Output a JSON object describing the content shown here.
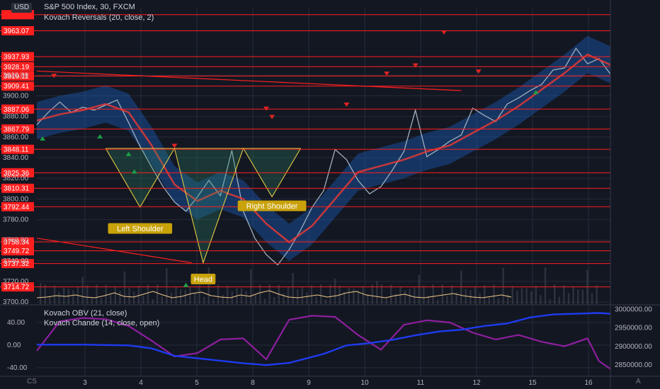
{
  "header": {
    "currency": "USD",
    "symbol_line": "S&P 500 Index, 30, FXCM",
    "indicator_line": "Kovach Reversals (20, close, 2)"
  },
  "lower_panel": {
    "line1": "Kovach OBV (21, close)",
    "line2": "Kovach Chande (14, close, open)"
  },
  "corner": {
    "left": "CS",
    "right": "A"
  },
  "colors": {
    "background": "#131722",
    "grid": "#262b3a",
    "level_line": "#ff1f1f",
    "level_badge": "#ff1f1f",
    "midline": "#e53935",
    "band_fill": "#1e6bd6",
    "price": "#9fb0bf",
    "pattern": "#f5d742",
    "obv": "#1f3bf0",
    "chande": "#8e1f9e",
    "volume_ma": "#f0c98a",
    "annotation_bg": "#c9a20a",
    "up_marker": "#1e9e47",
    "down_marker": "#e02424"
  },
  "chart_data": [
    {
      "type": "line",
      "title": "S&P 500 Index, 30, FXCM",
      "x_ticks": [
        "3",
        "4",
        "5",
        "8",
        "9",
        "10",
        "11",
        "12",
        "15",
        "16"
      ],
      "y_ticks": [
        "3920.00",
        "3900.00",
        "3880.00",
        "3860.00",
        "3840.00",
        "3820.00",
        "3800.00",
        "3780.00",
        "3760.00",
        "3740.00",
        "3720.00",
        "3700.00"
      ],
      "ylim": [
        3698,
        3986
      ],
      "xlim": [
        0,
        100
      ],
      "horizontal_levels": [
        "3963.07",
        "3937.93",
        "3928.19",
        "3919.11",
        "3909.41",
        "3887.06",
        "3867.79",
        "3848.11",
        "3825.36",
        "3810.31",
        "3792.44",
        "3758.34",
        "3749.72",
        "3737.32",
        "3714.72"
      ],
      "top_level_partial": "3978.6",
      "series": [
        {
          "key": "price",
          "x": [
            0,
            2,
            4,
            6,
            8,
            10,
            12,
            14,
            16,
            18,
            20,
            22,
            24,
            26,
            28,
            30,
            32,
            34,
            36,
            38,
            40,
            42,
            44,
            46,
            48,
            50,
            52,
            54,
            56,
            58,
            60,
            62,
            64,
            66,
            68,
            70,
            72,
            74,
            76,
            78,
            80,
            82,
            84,
            86,
            88,
            90,
            92,
            94,
            96,
            98,
            100
          ],
          "y": [
            3872,
            3884,
            3894,
            3884,
            3889,
            3886,
            3891,
            3896,
            3874,
            3851,
            3831,
            3812,
            3797,
            3788,
            3802,
            3818,
            3803,
            3847,
            3788,
            3762,
            3746,
            3736,
            3751,
            3770,
            3792,
            3808,
            3848,
            3838,
            3818,
            3805,
            3812,
            3828,
            3846,
            3886,
            3841,
            3848,
            3856,
            3862,
            3888,
            3881,
            3875,
            3892,
            3898,
            3905,
            3911,
            3925,
            3927,
            3946,
            3931,
            3936,
            3921
          ]
        },
        {
          "key": "midline",
          "x": [
            0,
            4,
            8,
            12,
            16,
            20,
            24,
            28,
            32,
            36,
            40,
            44,
            48,
            52,
            56,
            60,
            64,
            68,
            72,
            76,
            80,
            84,
            88,
            92,
            96,
            100
          ],
          "y": [
            3876,
            3882,
            3886,
            3892,
            3884,
            3852,
            3814,
            3798,
            3808,
            3800,
            3776,
            3758,
            3774,
            3800,
            3826,
            3832,
            3838,
            3846,
            3852,
            3864,
            3876,
            3890,
            3906,
            3922,
            3940,
            3930
          ]
        }
      ],
      "pattern": {
        "points": [
          [
            12,
            3849
          ],
          [
            18,
            3792
          ],
          [
            24,
            3849
          ],
          [
            29,
            3738
          ],
          [
            36,
            3849
          ],
          [
            41,
            3802
          ],
          [
            46,
            3849
          ]
        ],
        "neckline": 3849
      },
      "annotations": [
        "Left Shoulder",
        "Head",
        "Right Shoulder"
      ],
      "trendlines": [
        {
          "x": [
            0,
            74
          ],
          "y": [
            3924,
            3905
          ]
        },
        {
          "x": [
            0,
            27
          ],
          "y": [
            3762,
            3738
          ]
        }
      ],
      "markers_down": [
        [
          3,
          3918
        ],
        [
          24,
          3850
        ],
        [
          40,
          3886
        ],
        [
          41,
          3878
        ],
        [
          54,
          3890
        ],
        [
          61,
          3920
        ],
        [
          66,
          3928
        ],
        [
          71,
          3960
        ],
        [
          77,
          3922
        ]
      ],
      "markers_up": [
        [
          1,
          3860
        ],
        [
          11,
          3862
        ],
        [
          16,
          3845
        ],
        [
          17,
          3828
        ],
        [
          26,
          3718
        ],
        [
          87,
          3905
        ]
      ],
      "volume_ma": [
        5,
        6,
        8,
        7,
        9,
        6,
        5,
        8,
        12,
        7,
        6,
        10,
        14,
        9,
        5,
        7,
        11,
        13,
        8,
        6,
        5,
        9,
        7,
        12,
        15,
        10,
        6,
        5,
        7,
        9,
        6,
        8,
        12,
        14,
        9,
        7,
        5,
        8,
        10,
        6,
        5,
        7,
        9,
        11,
        8,
        6,
        5,
        7,
        9,
        6
      ]
    },
    {
      "type": "line",
      "title": "Kovach OBV (21, close) / Kovach Chande (14, close, open)",
      "left_y_ticks": [
        "40.00",
        "0.00",
        "-40.00"
      ],
      "left_ylim": [
        -55,
        70
      ],
      "right_y_ticks": [
        "3000000.00",
        "2950000.00",
        "2900000.00",
        "2850000.00"
      ],
      "right_ylim": [
        2820000,
        3010000
      ],
      "series": [
        {
          "key": "chande",
          "x": [
            0,
            4,
            8,
            12,
            16,
            20,
            24,
            28,
            32,
            36,
            40,
            44,
            48,
            52,
            56,
            60,
            64,
            68,
            72,
            76,
            80,
            84,
            88,
            92,
            96,
            98,
            100
          ],
          "y": [
            -10,
            42,
            48,
            46,
            34,
            8,
            -20,
            -14,
            10,
            12,
            -25,
            45,
            52,
            50,
            18,
            -8,
            36,
            44,
            40,
            22,
            10,
            18,
            6,
            -2,
            12,
            -28,
            -42
          ]
        },
        {
          "key": "obv",
          "x": [
            0,
            8,
            16,
            20,
            24,
            30,
            36,
            40,
            44,
            50,
            54,
            58,
            62,
            66,
            70,
            74,
            78,
            82,
            86,
            90,
            94,
            98,
            100
          ],
          "y": [
            2905000,
            2905000,
            2903000,
            2895000,
            2875000,
            2865000,
            2855000,
            2850000,
            2856000,
            2880000,
            2903000,
            2909000,
            2918000,
            2930000,
            2940000,
            2945000,
            2955000,
            2962000,
            2978000,
            2986000,
            2988000,
            2990000,
            2988000
          ]
        }
      ]
    }
  ]
}
